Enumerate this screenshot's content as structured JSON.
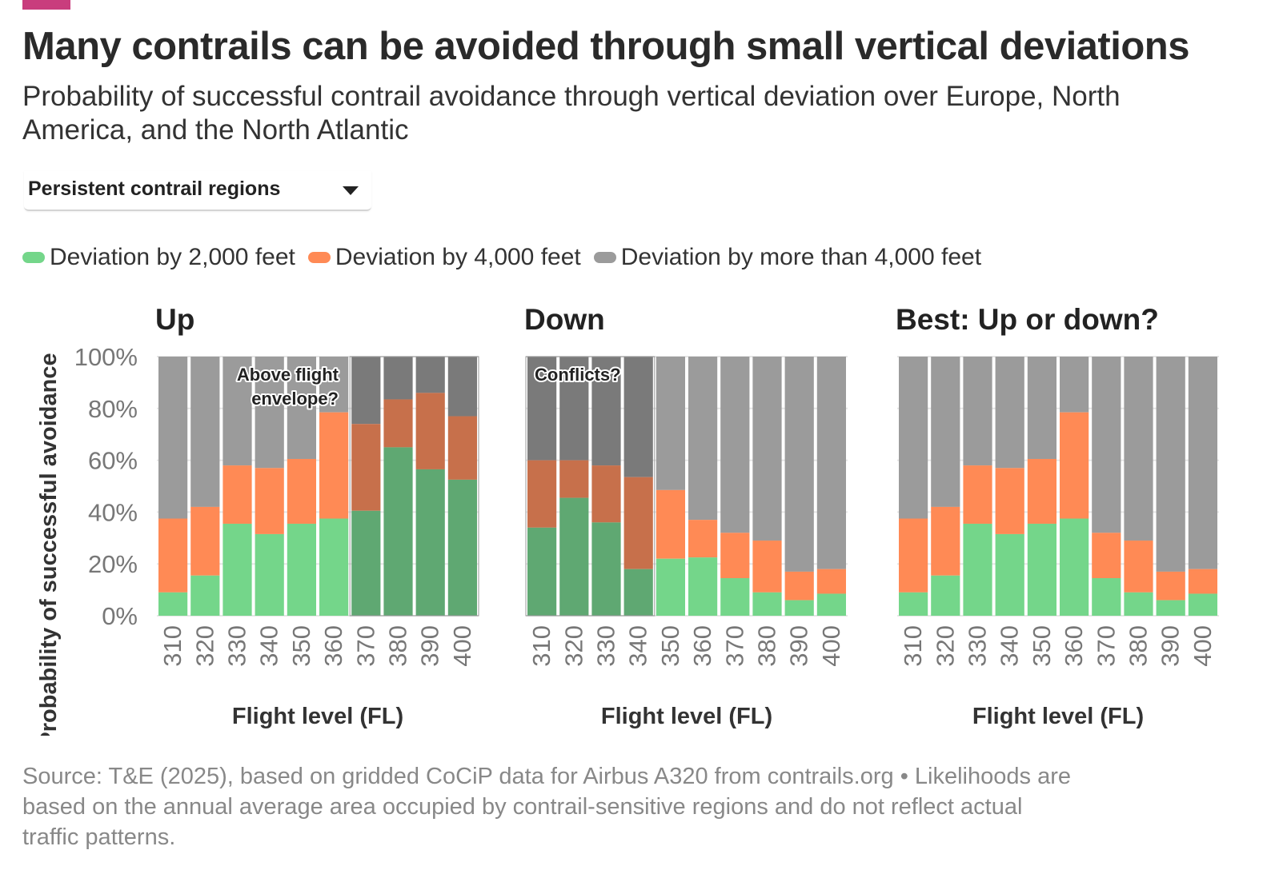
{
  "header": {
    "title": "Many contrails can be avoided through small vertical deviations",
    "subtitle": "Probability of successful contrail avoidance through vertical deviation over Europe, North America, and the North Atlantic"
  },
  "dropdown": {
    "selected": "Persistent contrail regions"
  },
  "legend": [
    {
      "label": "Deviation by 2,000 feet",
      "color": "#74d68a"
    },
    {
      "label": "Deviation by 4,000 feet",
      "color": "#ff8a55"
    },
    {
      "label": "Deviation by more than 4,000 feet",
      "color": "#9b9b9b"
    }
  ],
  "footer": {
    "note": "Source: T&E (2025), based on gridded CoCiP data for Airbus A320 from contrails.org • Likelihoods are based on the annual average area occupied by contrail-sensitive regions and do not reflect actual traffic patterns."
  },
  "chart_data": {
    "type": "bar",
    "stacked": true,
    "ylabel": "Probability of successful avoidance",
    "xlabel": "Flight level (FL)",
    "ylim": [
      0,
      100
    ],
    "y_ticks": [
      "0%",
      "20%",
      "40%",
      "60%",
      "80%",
      "100%"
    ],
    "y_tick_values": [
      0,
      20,
      40,
      60,
      80,
      100
    ],
    "categories": [
      "310",
      "320",
      "330",
      "340",
      "350",
      "360",
      "370",
      "380",
      "390",
      "400"
    ],
    "colors": {
      "dev2000": "#74d68a",
      "dev4000": "#ff8a55",
      "more": "#9b9b9b",
      "dev2000_shaded": "#5fa872",
      "dev4000_shaded": "#c7704b",
      "more_shaded": "#7a7a7a"
    },
    "panels": [
      {
        "title": "Up",
        "dev2000": [
          9,
          15.5,
          35.5,
          31.5,
          35.5,
          37.5,
          40.5,
          65,
          56.5,
          52.5
        ],
        "dev4000": [
          28.5,
          26.5,
          22.5,
          25.5,
          25,
          41,
          33.5,
          18.5,
          29.5,
          24.5
        ],
        "shaded_from_index": 6,
        "annotation": [
          "Above flight",
          "envelope?"
        ]
      },
      {
        "title": "Down",
        "dev2000": [
          34,
          45.5,
          36,
          18,
          22,
          22.5,
          14.5,
          9,
          6,
          8.5
        ],
        "dev4000": [
          26,
          14.5,
          22,
          35.5,
          26.5,
          14.5,
          17.5,
          20,
          11,
          9.5
        ],
        "shaded_to_index": 3,
        "annotation": [
          "Conflicts?"
        ]
      },
      {
        "title": "Best: Up or down?",
        "dev2000": [
          9,
          15.5,
          35.5,
          31.5,
          35.5,
          37.5,
          14.5,
          9,
          6,
          8.5
        ],
        "dev4000": [
          28.5,
          26.5,
          22.5,
          25.5,
          25,
          41,
          17.5,
          20,
          11,
          9.5
        ]
      }
    ]
  }
}
